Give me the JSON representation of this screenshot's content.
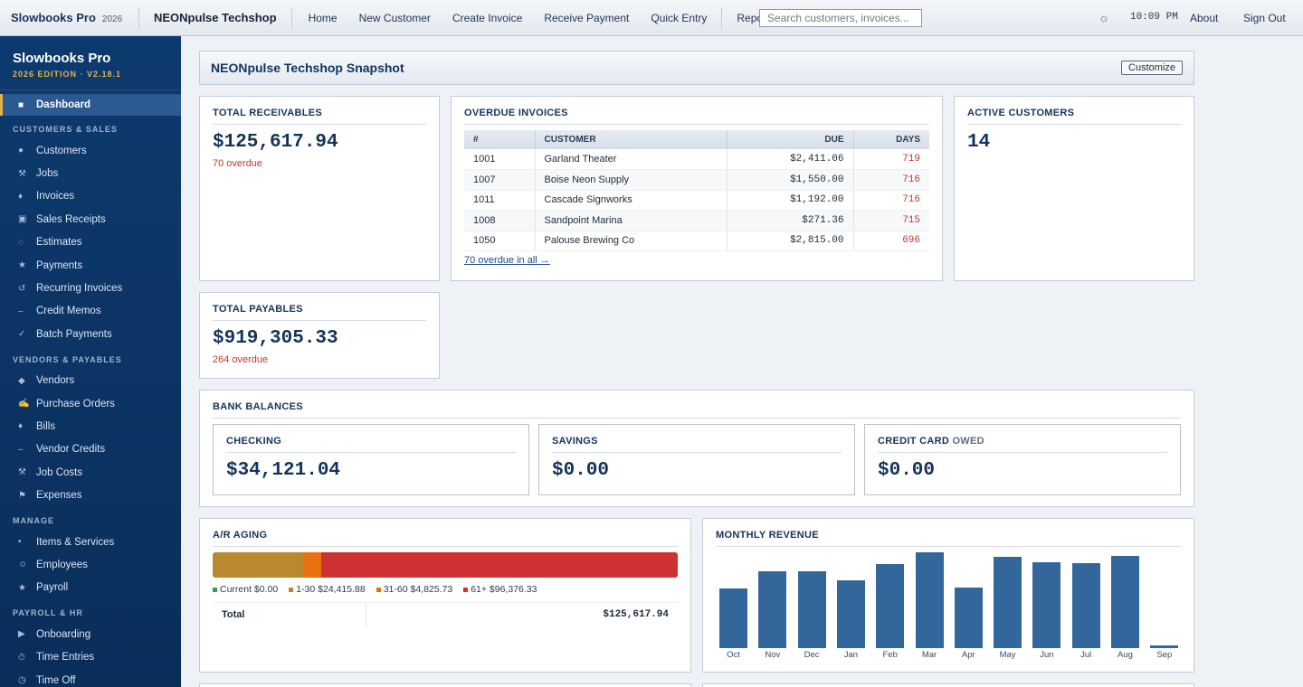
{
  "topbar": {
    "brand": "Slowbooks Pro",
    "year": "2026",
    "company": "NEONpulse Techshop",
    "nav": [
      "Home",
      "New Customer",
      "Create Invoice",
      "Receive Payment",
      "Quick Entry"
    ],
    "reports": "Reports",
    "search_placeholder": "Search customers, invoices...",
    "theme_icon": "☼",
    "clock": "10:09 PM",
    "about": "About",
    "signout": "Sign Out"
  },
  "sidebar": {
    "title": "Slowbooks Pro",
    "edition": "2026 EDITION · V2.18.1",
    "dashboard": {
      "icon": "■",
      "label": "Dashboard"
    },
    "sections": [
      {
        "label": "CUSTOMERS & SALES",
        "items": [
          {
            "icon": "●",
            "label": "Customers"
          },
          {
            "icon": "⚒",
            "label": "Jobs"
          },
          {
            "icon": "♦",
            "label": "Invoices"
          },
          {
            "icon": "▣",
            "label": "Sales Receipts"
          },
          {
            "icon": "◌",
            "label": "Estimates"
          },
          {
            "icon": "★",
            "label": "Payments"
          },
          {
            "icon": "↺",
            "label": "Recurring Invoices"
          },
          {
            "icon": "–",
            "label": "Credit Memos"
          },
          {
            "icon": "✓",
            "label": "Batch Payments"
          }
        ]
      },
      {
        "label": "VENDORS & PAYABLES",
        "items": [
          {
            "icon": "◆",
            "label": "Vendors"
          },
          {
            "icon": "✍",
            "label": "Purchase Orders"
          },
          {
            "icon": "♦",
            "label": "Bills"
          },
          {
            "icon": "–",
            "label": "Vendor Credits"
          },
          {
            "icon": "⚒",
            "label": "Job Costs"
          },
          {
            "icon": "⚑",
            "label": "Expenses"
          }
        ]
      },
      {
        "label": "MANAGE",
        "items": [
          {
            "icon": "•",
            "label": "Items & Services"
          },
          {
            "icon": "☺",
            "label": "Employees"
          },
          {
            "icon": "★",
            "label": "Payroll"
          }
        ]
      },
      {
        "label": "PAYROLL & HR",
        "items": [
          {
            "icon": "▶",
            "label": "Onboarding"
          },
          {
            "icon": "⏱",
            "label": "Time Entries"
          },
          {
            "icon": "◷",
            "label": "Time Off"
          }
        ]
      }
    ]
  },
  "snapshot": {
    "title": "NEONpulse Techshop Snapshot",
    "customize": "Customize"
  },
  "receivables": {
    "title": "TOTAL RECEIVABLES",
    "amount": "$125,617.94",
    "note": "70 overdue"
  },
  "payables": {
    "title": "TOTAL PAYABLES",
    "amount": "$919,305.33",
    "note": "264 overdue"
  },
  "active_customers": {
    "title": "ACTIVE CUSTOMERS",
    "count": "14"
  },
  "overdue": {
    "title": "OVERDUE INVOICES",
    "columns": [
      "#",
      "CUSTOMER",
      "DUE",
      "DAYS"
    ],
    "rows": [
      {
        "num": "1001",
        "customer": "Garland Theater",
        "due": "$2,411.06",
        "days": "719"
      },
      {
        "num": "1007",
        "customer": "Boise Neon Supply",
        "due": "$1,550.00",
        "days": "716"
      },
      {
        "num": "1011",
        "customer": "Cascade Signworks",
        "due": "$1,192.00",
        "days": "716"
      },
      {
        "num": "1008",
        "customer": "Sandpoint Marina",
        "due": "$271.36",
        "days": "715"
      },
      {
        "num": "1050",
        "customer": "Palouse Brewing Co",
        "due": "$2,815.00",
        "days": "696"
      }
    ],
    "link": "70 overdue in all →"
  },
  "bank": {
    "title": "BANK BALANCES",
    "checking": {
      "title": "CHECKING",
      "amount": "$34,121.04"
    },
    "savings": {
      "title": "SAVINGS",
      "amount": "$0.00"
    },
    "credit": {
      "title": "CREDIT CARD",
      "owed": "OWED",
      "amount": "$0.00"
    }
  },
  "aging": {
    "title": "A/R AGING",
    "buckets": [
      {
        "label": "Current $0.00",
        "value": 0,
        "color": "#3a9a4a"
      },
      {
        "label": "1-30 $24,415.88",
        "value": 24415.88,
        "color": "#b8892e"
      },
      {
        "label": "31-60 $4,825.73",
        "value": 4825.73,
        "color": "#e8700f"
      },
      {
        "label": "61+ $96,376.33",
        "value": 96376.33,
        "color": "#cf3232"
      }
    ],
    "total_label": "Total",
    "total": "$125,617.94"
  },
  "chart_data": {
    "type": "bar",
    "title": "MONTHLY REVENUE",
    "categories": [
      "Oct",
      "Nov",
      "Dec",
      "Jan",
      "Feb",
      "Mar",
      "Apr",
      "May",
      "Jun",
      "Jul",
      "Aug",
      "Sep"
    ],
    "values": [
      62,
      80,
      80,
      71,
      88,
      100,
      63,
      95,
      90,
      89,
      96,
      3
    ],
    "color": "#33679c"
  }
}
